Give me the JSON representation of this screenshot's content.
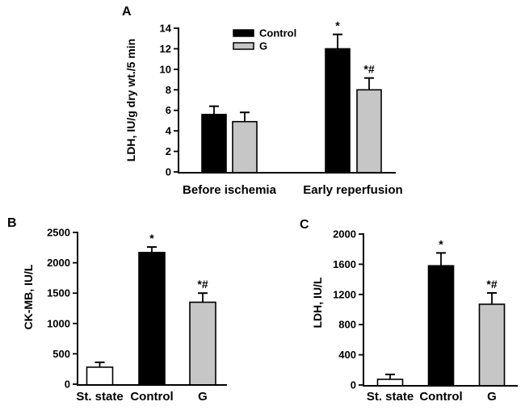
{
  "figure": {
    "background": "#ffffff",
    "bar_border_color": "#000000",
    "axis_color": "#000000",
    "text_color": "#000000"
  },
  "chart_data": [
    {
      "panel": "A",
      "type": "bar",
      "ylabel": "LDH, IU/g dry wt./5 min",
      "ylim": [
        0,
        14
      ],
      "yticks": [
        0,
        2,
        4,
        6,
        8,
        10,
        12,
        14
      ],
      "categories": [
        "Before ischemia",
        "Early reperfusion"
      ],
      "grid": false,
      "legend": {
        "visible": true,
        "position": "top-center",
        "entries": [
          {
            "label": "Control",
            "color": "#000000"
          },
          {
            "label": "G",
            "color": "#c6c6c6"
          }
        ]
      },
      "series": [
        {
          "name": "Control",
          "color": "#000000",
          "values": [
            5.6,
            12.0
          ],
          "errors": [
            0.8,
            1.4
          ],
          "annotations": [
            "",
            "*"
          ]
        },
        {
          "name": "G",
          "color": "#c6c6c6",
          "values": [
            4.9,
            8.0
          ],
          "errors": [
            0.9,
            1.15
          ],
          "annotations": [
            "",
            "*#"
          ]
        }
      ]
    },
    {
      "panel": "B",
      "type": "bar",
      "ylabel": "CK-MB, IU/L",
      "ylim": [
        0,
        2500
      ],
      "yticks": [
        0,
        500,
        1000,
        1500,
        2000,
        2500
      ],
      "categories": [
        "St. state",
        "Control",
        "G"
      ],
      "grid": false,
      "legend": {
        "visible": false
      },
      "bars": [
        {
          "label": "St. state",
          "color": "#ffffff",
          "value": 280,
          "error": 80,
          "annotation": ""
        },
        {
          "label": "Control",
          "color": "#000000",
          "value": 2170,
          "error": 90,
          "annotation": "*"
        },
        {
          "label": "G",
          "color": "#c6c6c6",
          "value": 1350,
          "error": 150,
          "annotation": "*#"
        }
      ]
    },
    {
      "panel": "C",
      "type": "bar",
      "ylabel": "LDH, IU/L",
      "ylim": [
        0,
        2000
      ],
      "yticks": [
        0,
        400,
        800,
        1200,
        1600,
        2000
      ],
      "categories": [
        "St. state",
        "Control",
        "G"
      ],
      "grid": false,
      "legend": {
        "visible": false
      },
      "bars": [
        {
          "label": "St. state",
          "color": "#ffffff",
          "value": 75,
          "error": 65,
          "annotation": ""
        },
        {
          "label": "Control",
          "color": "#000000",
          "value": 1580,
          "error": 170,
          "annotation": "*"
        },
        {
          "label": "G",
          "color": "#c6c6c6",
          "value": 1070,
          "error": 150,
          "annotation": "*#"
        }
      ]
    }
  ]
}
